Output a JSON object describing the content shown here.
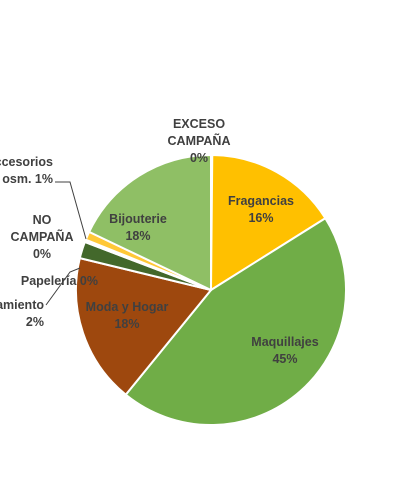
{
  "chart_data": {
    "type": "pie",
    "title": "",
    "start_angle_deg": 0,
    "direction": "clockwise",
    "slices": [
      {
        "name": "EXCESO CAMPAÑA",
        "value": 0,
        "label_lines": [
          "EXCESO",
          "CAMPAÑA",
          "0%"
        ],
        "color": "#F2C00A"
      },
      {
        "name": "Fragancias",
        "value": 16,
        "label_lines": [
          "Fragancias",
          "16%"
        ],
        "color": "#FFC000"
      },
      {
        "name": "Maquillajes",
        "value": 45,
        "label_lines": [
          "Maquillajes",
          "45%"
        ],
        "color": "#70AD47"
      },
      {
        "name": "Moda y Hogar",
        "value": 18,
        "label_lines": [
          "Moda y Hogar",
          "18%"
        ],
        "color": "#9E480E"
      },
      {
        "name": "Tratamiento",
        "value": 2,
        "label_lines": [
          "amiento",
          "2%"
        ],
        "color": "#43682B"
      },
      {
        "name": "Papelería",
        "value": 0,
        "label_lines": [
          "Papelería 0%"
        ],
        "color": "#5B7F2E"
      },
      {
        "name": "NO CAMPAÑA",
        "value": 0,
        "label_lines": [
          "NO",
          "CAMPAÑA",
          "0%"
        ],
        "color": "#2E5E1E"
      },
      {
        "name": "Accesorios Cosm.",
        "value": 1,
        "label_lines": [
          "ccesorios",
          "osm. 1%"
        ],
        "color": "#FFC837"
      },
      {
        "name": "Bijouterie",
        "value": 18,
        "label_lines": [
          "Bijouterie",
          "18%"
        ],
        "color": "#8FBF65"
      }
    ]
  }
}
